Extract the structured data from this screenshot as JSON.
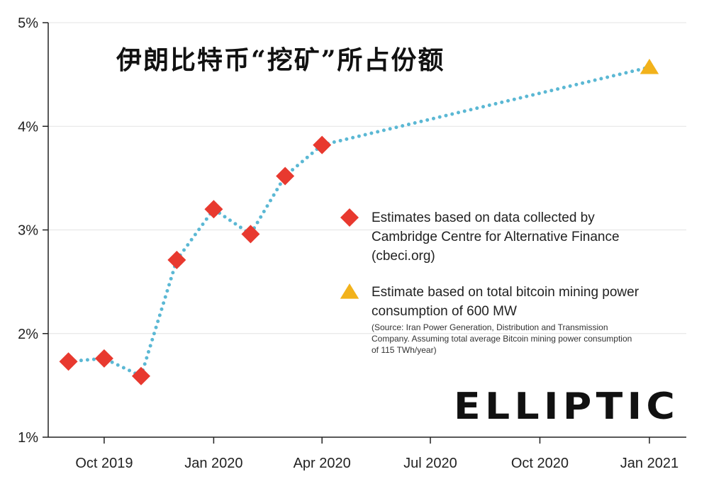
{
  "title": "伊朗比特币“挖矿”所占份额",
  "logo": "ELLIPTIC",
  "chart_data": {
    "type": "line",
    "x_labels": [
      "Oct 2019",
      "Jan 2020",
      "Apr 2020",
      "Jul 2020",
      "Oct 2020",
      "Jan 2021"
    ],
    "y_ticks": [
      "1%",
      "2%",
      "3%",
      "4%",
      "5%"
    ],
    "ylim": [
      1,
      5
    ],
    "xlim": [
      "2019-08-15",
      "2021-02-01"
    ],
    "series": [
      {
        "name": "Estimates based on data collected by Cambridge Centre for Alternative Finance (cbeci.org)",
        "marker": "diamond",
        "color": "#e8392f",
        "points": [
          {
            "x": "2019-09-01",
            "y": 1.73
          },
          {
            "x": "2019-10-01",
            "y": 1.76
          },
          {
            "x": "2019-11-01",
            "y": 1.59
          },
          {
            "x": "2019-12-01",
            "y": 2.71
          },
          {
            "x": "2020-01-01",
            "y": 3.2
          },
          {
            "x": "2020-02-01",
            "y": 2.96
          },
          {
            "x": "2020-03-01",
            "y": 3.52
          },
          {
            "x": "2020-04-01",
            "y": 3.82
          }
        ]
      },
      {
        "name": "Estimate based on total bitcoin mining power consumption of 600 MW",
        "marker": "triangle",
        "color": "#f2b21b",
        "points": [
          {
            "x": "2021-01-01",
            "y": 4.57
          }
        ]
      }
    ],
    "connector_line_color": "#5bb8d4",
    "connector_style": "dotted",
    "legend": [
      {
        "marker": "diamond",
        "color": "#e8392f",
        "lines": [
          "Estimates based on data collected by",
          "Cambridge Centre for Alternative Finance",
          "(cbeci.org)"
        ]
      },
      {
        "marker": "triangle",
        "color": "#f2b21b",
        "lines": [
          "Estimate based on total bitcoin mining power",
          "consumption of 600 MW"
        ],
        "note_lines": [
          "(Source: Iran Power Generation, Distribution and Transmission",
          "Company. Assuming total average Bitcoin mining power consumption",
          "of 115 TWh/year)"
        ]
      }
    ],
    "legend_placement": "right",
    "grid": true
  }
}
